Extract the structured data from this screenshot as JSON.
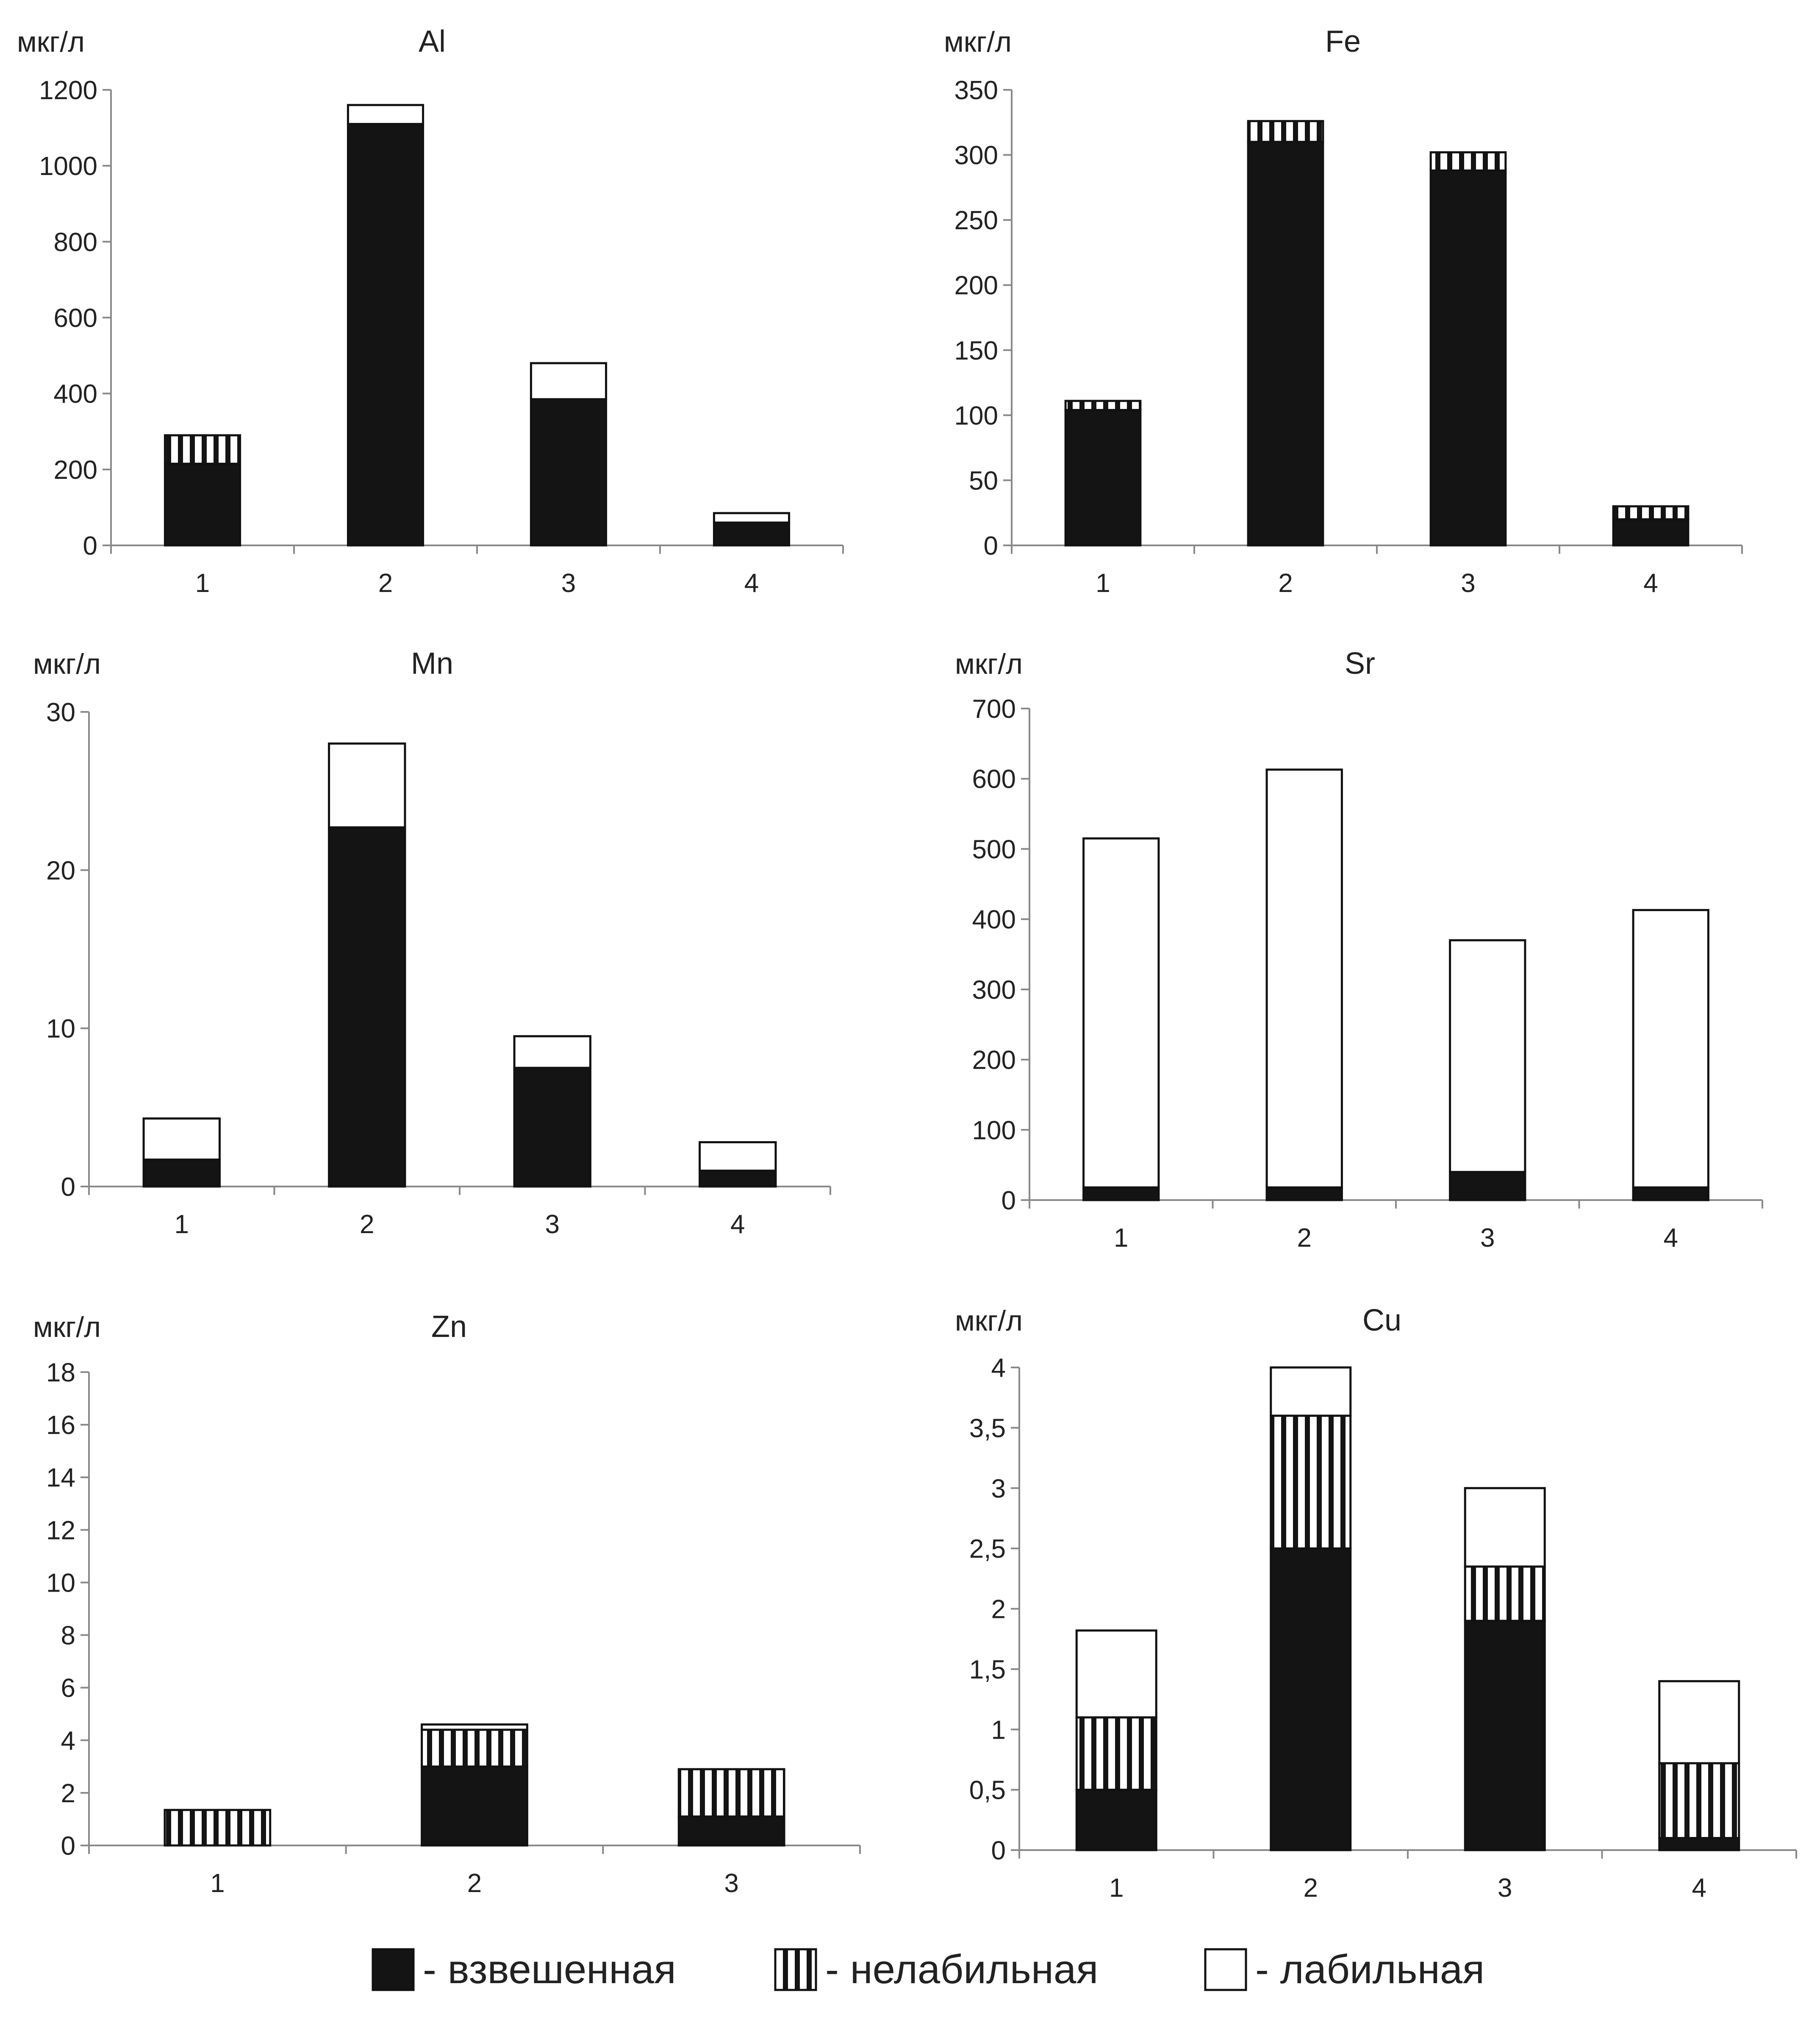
{
  "legend": [
    {
      "key": "suspended",
      "label": "- взвешенная",
      "pattern": "solid"
    },
    {
      "key": "nonlabile",
      "label": "- нелабильная",
      "pattern": "stripes"
    },
    {
      "key": "labile",
      "label": "- лабильная",
      "pattern": "empty"
    }
  ],
  "colors": {
    "dark": "#141414",
    "outline": "#111111",
    "axis": "#888888"
  },
  "chart_data": [
    {
      "type": "bar",
      "stacked": true,
      "title": "Al",
      "ylabel": "мкг/л",
      "xlabel": "",
      "categories": [
        "1",
        "2",
        "3",
        "4"
      ],
      "ylim": [
        0,
        1200
      ],
      "ticks": [
        0,
        200,
        400,
        600,
        800,
        1000,
        1200
      ],
      "tick_labels": [
        "0",
        "200",
        "400",
        "600",
        "800",
        "1000",
        "1200"
      ],
      "series": [
        {
          "key": "suspended",
          "values": [
            215,
            1110,
            385,
            60
          ]
        },
        {
          "key": "nonlabile",
          "values": [
            75,
            0,
            0,
            0
          ]
        },
        {
          "key": "labile",
          "values": [
            0,
            50,
            95,
            25
          ]
        }
      ]
    },
    {
      "type": "bar",
      "stacked": true,
      "title": "Fe",
      "ylabel": "мкг/л",
      "xlabel": "",
      "categories": [
        "1",
        "2",
        "3",
        "4"
      ],
      "ylim": [
        0,
        350
      ],
      "ticks": [
        0,
        50,
        100,
        150,
        200,
        250,
        300,
        350
      ],
      "tick_labels": [
        "0",
        "50",
        "100",
        "150",
        "200",
        "250",
        "300",
        "350"
      ],
      "series": [
        {
          "key": "suspended",
          "values": [
            104,
            310,
            288,
            20
          ]
        },
        {
          "key": "nonlabile",
          "values": [
            7,
            16,
            14,
            10
          ]
        },
        {
          "key": "labile",
          "values": [
            0,
            0,
            0,
            0
          ]
        }
      ]
    },
    {
      "type": "bar",
      "stacked": true,
      "title": "Mn",
      "ylabel": "мкг/л",
      "xlabel": "",
      "categories": [
        "1",
        "2",
        "3",
        "4"
      ],
      "ylim": [
        0,
        30
      ],
      "ticks": [
        0,
        10,
        20,
        30
      ],
      "tick_labels": [
        "0",
        "10",
        "20",
        "30"
      ],
      "series": [
        {
          "key": "suspended",
          "values": [
            1.7,
            22.6,
            7.5,
            1.0
          ]
        },
        {
          "key": "nonlabile",
          "values": [
            0,
            0.1,
            0,
            0
          ]
        },
        {
          "key": "labile",
          "values": [
            2.6,
            5.3,
            2.0,
            1.8
          ]
        }
      ]
    },
    {
      "type": "bar",
      "stacked": true,
      "title": "Sr",
      "ylabel": "мкг/л",
      "xlabel": "",
      "categories": [
        "1",
        "2",
        "3",
        "4"
      ],
      "ylim": [
        0,
        700
      ],
      "ticks": [
        0,
        100,
        200,
        300,
        400,
        500,
        600,
        700
      ],
      "tick_labels": [
        "0",
        "100",
        "200",
        "300",
        "400",
        "500",
        "600",
        "700"
      ],
      "series": [
        {
          "key": "suspended",
          "values": [
            18,
            18,
            40,
            18
          ]
        },
        {
          "key": "nonlabile",
          "values": [
            0,
            0,
            0,
            0
          ]
        },
        {
          "key": "labile",
          "values": [
            497,
            595,
            330,
            395
          ]
        }
      ]
    },
    {
      "type": "bar",
      "stacked": true,
      "title": "Zn",
      "ylabel": "мкг/л",
      "xlabel": "",
      "categories": [
        "1",
        "2",
        "3"
      ],
      "ylim": [
        0,
        18
      ],
      "ticks": [
        0,
        2,
        4,
        6,
        8,
        10,
        12,
        14,
        16,
        18
      ],
      "tick_labels": [
        "0",
        "2",
        "4",
        "6",
        "8",
        "10",
        "12",
        "14",
        "16",
        "18"
      ],
      "series": [
        {
          "key": "suspended",
          "values": [
            0,
            3.0,
            1.1
          ]
        },
        {
          "key": "nonlabile",
          "values": [
            1.35,
            1.4,
            1.8
          ]
        },
        {
          "key": "labile",
          "values": [
            0,
            0.2,
            0
          ]
        }
      ]
    },
    {
      "type": "bar",
      "stacked": true,
      "title": "Cu",
      "ylabel": "мкг/л",
      "xlabel": "",
      "categories": [
        "1",
        "2",
        "3",
        "4"
      ],
      "ylim": [
        0,
        4
      ],
      "ticks": [
        0,
        0.5,
        1,
        1.5,
        2,
        2.5,
        3,
        3.5,
        4
      ],
      "tick_labels": [
        "0",
        "0,5",
        "1",
        "1,5",
        "2",
        "2,5",
        "3",
        "3,5",
        "4"
      ],
      "series": [
        {
          "key": "suspended",
          "values": [
            0.5,
            2.5,
            1.9,
            0.1
          ]
        },
        {
          "key": "nonlabile",
          "values": [
            0.6,
            1.1,
            0.45,
            0.62
          ]
        },
        {
          "key": "labile",
          "values": [
            0.72,
            0.4,
            0.65,
            0.68
          ]
        }
      ]
    }
  ]
}
